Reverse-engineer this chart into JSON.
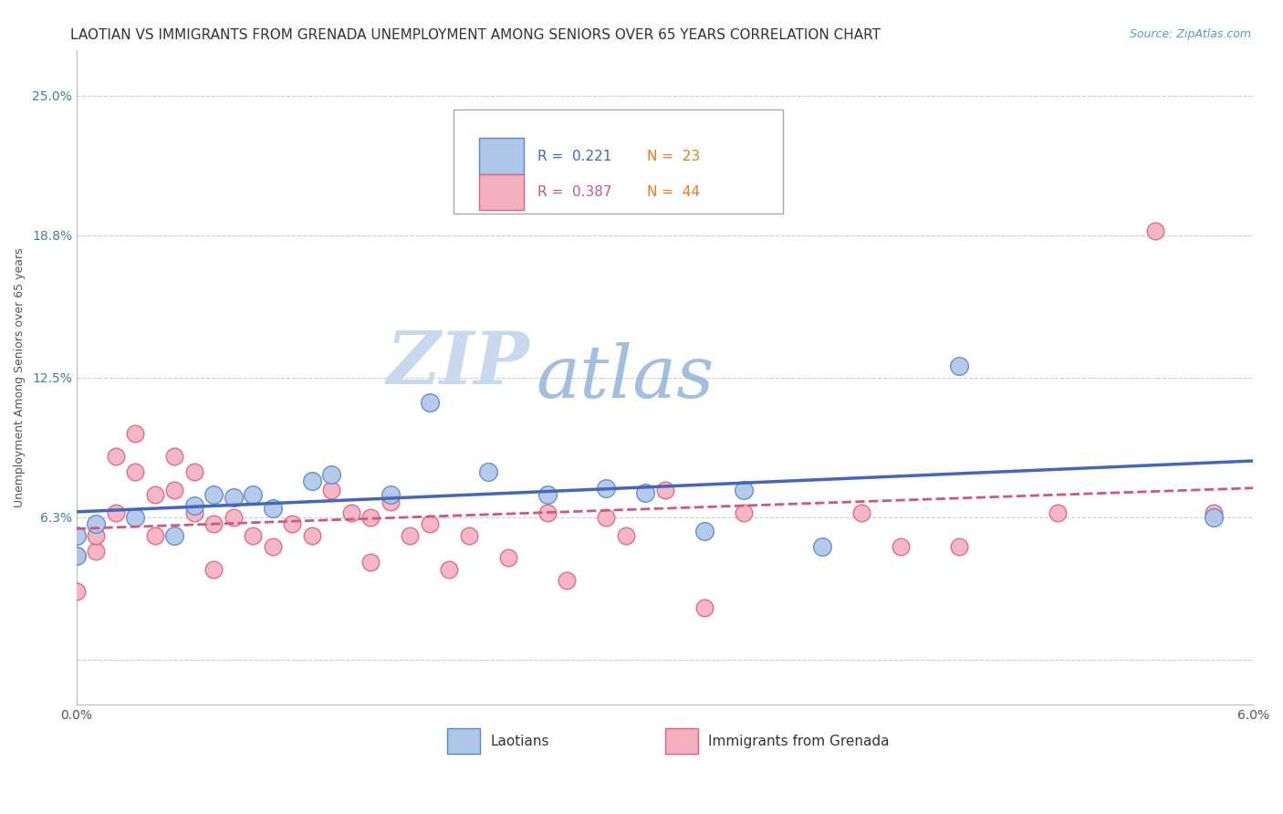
{
  "title": "LAOTIAN VS IMMIGRANTS FROM GRENADA UNEMPLOYMENT AMONG SENIORS OVER 65 YEARS CORRELATION CHART",
  "source": "Source: ZipAtlas.com",
  "xlabel_laotian": "Laotians",
  "xlabel_grenada": "Immigrants from Grenada",
  "ylabel": "Unemployment Among Seniors over 65 years",
  "watermark_zip": "ZIP",
  "watermark_atlas": "atlas",
  "xlim": [
    0.0,
    0.06
  ],
  "ylim": [
    -0.02,
    0.27
  ],
  "xtick_positions": [
    0.0,
    0.01,
    0.02,
    0.03,
    0.04,
    0.05,
    0.06
  ],
  "xticklabels": [
    "0.0%",
    "",
    "",
    "",
    "",
    "",
    "6.0%"
  ],
  "ytick_positions": [
    0.0,
    0.063,
    0.125,
    0.188,
    0.25
  ],
  "yticklabels": [
    "",
    "6.3%",
    "12.5%",
    "18.8%",
    "25.0%"
  ],
  "blue_fill": "#AEC6E8",
  "blue_edge": "#5588CC",
  "pink_fill": "#F4B0C0",
  "pink_edge": "#E06080",
  "blue_line_color": "#4466BB",
  "pink_line_color": "#D05878",
  "R_blue": 0.221,
  "N_blue": 23,
  "R_pink": 0.387,
  "N_pink": 44,
  "blue_scatter_x": [
    0.0,
    0.0,
    0.001,
    0.003,
    0.005,
    0.006,
    0.007,
    0.008,
    0.009,
    0.01,
    0.012,
    0.013,
    0.016,
    0.018,
    0.021,
    0.024,
    0.027,
    0.029,
    0.032,
    0.034,
    0.038,
    0.045,
    0.058
  ],
  "blue_scatter_y": [
    0.046,
    0.055,
    0.06,
    0.063,
    0.055,
    0.068,
    0.073,
    0.072,
    0.073,
    0.067,
    0.079,
    0.082,
    0.073,
    0.114,
    0.083,
    0.073,
    0.076,
    0.074,
    0.057,
    0.075,
    0.05,
    0.13,
    0.063
  ],
  "pink_scatter_x": [
    0.0,
    0.0,
    0.001,
    0.001,
    0.002,
    0.002,
    0.003,
    0.003,
    0.004,
    0.004,
    0.005,
    0.005,
    0.006,
    0.006,
    0.007,
    0.007,
    0.008,
    0.009,
    0.01,
    0.011,
    0.012,
    0.013,
    0.014,
    0.015,
    0.015,
    0.016,
    0.017,
    0.018,
    0.019,
    0.02,
    0.022,
    0.024,
    0.025,
    0.027,
    0.028,
    0.03,
    0.032,
    0.034,
    0.04,
    0.042,
    0.045,
    0.05,
    0.055,
    0.058
  ],
  "pink_scatter_y": [
    0.046,
    0.03,
    0.048,
    0.055,
    0.065,
    0.09,
    0.083,
    0.1,
    0.055,
    0.073,
    0.075,
    0.09,
    0.065,
    0.083,
    0.04,
    0.06,
    0.063,
    0.055,
    0.05,
    0.06,
    0.055,
    0.075,
    0.065,
    0.063,
    0.043,
    0.07,
    0.055,
    0.06,
    0.04,
    0.055,
    0.045,
    0.065,
    0.035,
    0.063,
    0.055,
    0.075,
    0.023,
    0.065,
    0.065,
    0.05,
    0.05,
    0.065,
    0.19,
    0.065
  ],
  "grid_color": "#CCCCCC",
  "background_color": "#FFFFFF",
  "title_fontsize": 11,
  "axis_label_fontsize": 9,
  "tick_fontsize": 10,
  "legend_fontsize": 11,
  "watermark_fontsize_zip": 58,
  "watermark_fontsize_atlas": 58,
  "watermark_color": "#C8D8EE",
  "source_color": "#5599CC"
}
